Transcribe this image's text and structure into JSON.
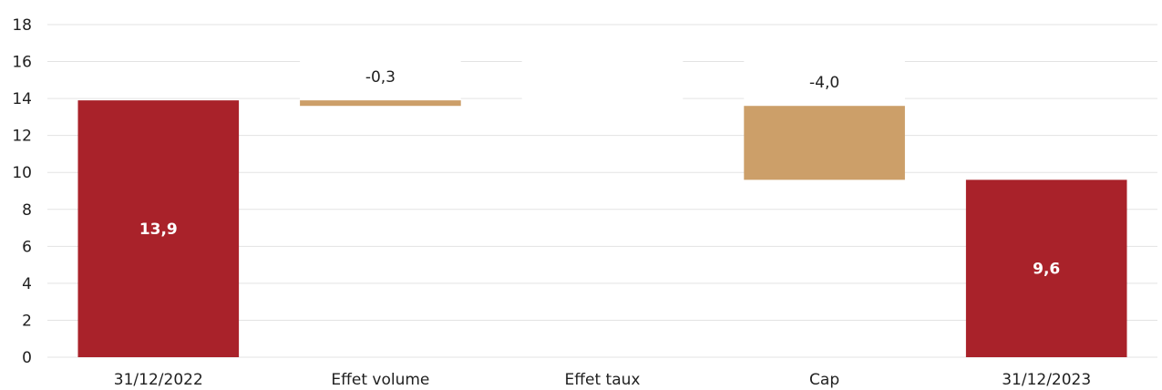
{
  "chart_data": {
    "type": "waterfall",
    "categories": [
      "31/12/2022",
      "Effet volume",
      "Effet taux",
      "Cap",
      "31/12/2023"
    ],
    "bars": [
      {
        "category": "31/12/2022",
        "kind": "total",
        "start": 0,
        "end": 13.9,
        "label": "13,9"
      },
      {
        "category": "Effet volume",
        "kind": "delta",
        "start": 13.9,
        "end": 13.6,
        "label": "-0,3"
      },
      {
        "category": "Effet taux",
        "kind": "delta",
        "start": 13.6,
        "end": 13.6,
        "label": ""
      },
      {
        "category": "Cap",
        "kind": "delta",
        "start": 13.6,
        "end": 9.6,
        "label": "-4,0"
      },
      {
        "category": "31/12/2023",
        "kind": "total",
        "start": 0,
        "end": 9.6,
        "label": "9,6"
      }
    ],
    "ylim": [
      0,
      18
    ],
    "yticks": [
      0,
      2,
      4,
      6,
      8,
      10,
      12,
      14,
      16,
      18
    ],
    "grid": true,
    "colors": {
      "total": "#a9222a",
      "delta": "#cc9f69",
      "grid": "#e3e3e3",
      "text": "#1f1f1f"
    }
  }
}
